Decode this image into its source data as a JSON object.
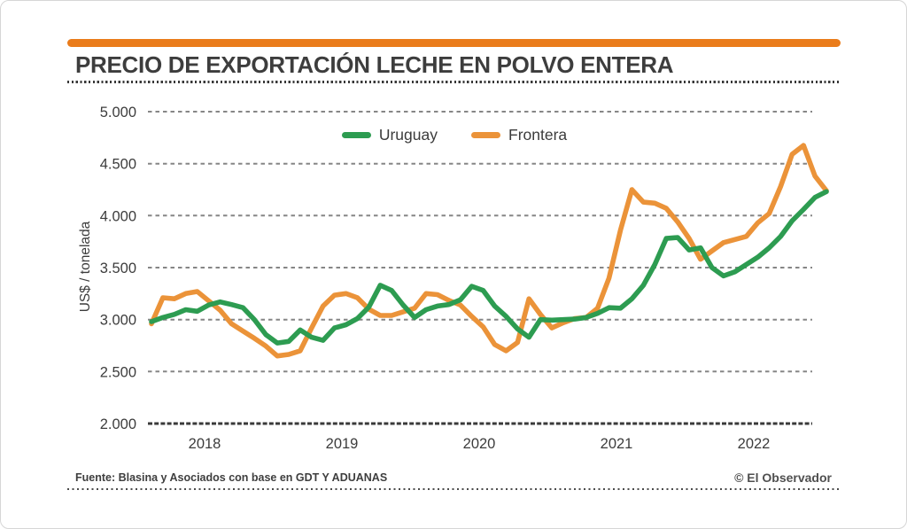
{
  "header": {
    "title": "PRECIO DE EXPORTACIÓN LECHE EN POLVO ENTERA",
    "accent_color": "#ea7c1b"
  },
  "footer": {
    "source": "Fuente: Blasina y Asociados con base en GDT Y ADUANAS",
    "credit": "© El Observador"
  },
  "chart_data": {
    "type": "line",
    "title": "PRECIO DE EXPORTACIÓN LECHE EN POLVO ENTERA",
    "ylabel": "US$ / tonelada",
    "ylim": [
      2000,
      5000
    ],
    "grid": "horizontal-dashed",
    "legend_position": "top-center",
    "y_ticks": [
      {
        "value": 5000,
        "label": "5.000"
      },
      {
        "value": 4500,
        "label": "4.500"
      },
      {
        "value": 4000,
        "label": "4.000"
      },
      {
        "value": 3500,
        "label": "3.500"
      },
      {
        "value": 3000,
        "label": "3.000"
      },
      {
        "value": 2500,
        "label": "2.500"
      },
      {
        "value": 2000,
        "label": "2.000"
      }
    ],
    "x_ticks": [
      {
        "label": "2018",
        "pos": 0.0787
      },
      {
        "label": "2019",
        "pos": 0.2822
      },
      {
        "label": "2020",
        "pos": 0.4856
      },
      {
        "label": "2021",
        "pos": 0.689
      },
      {
        "label": "2022",
        "pos": 0.8924
      }
    ],
    "series": [
      {
        "name": "Uruguay",
        "color": "#2d9c51",
        "values": [
          2980,
          3020,
          3050,
          3095,
          3080,
          3140,
          3170,
          3145,
          3115,
          3000,
          2855,
          2775,
          2790,
          2900,
          2830,
          2800,
          2920,
          2950,
          3010,
          3120,
          3330,
          3280,
          3140,
          3020,
          3095,
          3130,
          3145,
          3190,
          3320,
          3280,
          3130,
          3030,
          2910,
          2830,
          3000,
          2995,
          3000,
          3005,
          3020,
          3060,
          3115,
          3110,
          3200,
          3330,
          3530,
          3780,
          3790,
          3670,
          3690,
          3500,
          3420,
          3460,
          3530,
          3600,
          3690,
          3800,
          3950,
          4060,
          4175,
          4230
        ]
      },
      {
        "name": "Frontera",
        "color": "#eb9339",
        "values": [
          2960,
          3210,
          3200,
          3250,
          3270,
          3180,
          3090,
          2960,
          2890,
          2820,
          2745,
          2650,
          2665,
          2700,
          2920,
          3130,
          3235,
          3250,
          3210,
          3100,
          3040,
          3040,
          3075,
          3110,
          3250,
          3240,
          3185,
          3140,
          3030,
          2930,
          2760,
          2700,
          2780,
          3200,
          3050,
          2920,
          2970,
          3010,
          3020,
          3110,
          3400,
          3860,
          4250,
          4130,
          4120,
          4070,
          3940,
          3780,
          3580,
          3660,
          3740,
          3770,
          3800,
          3930,
          4020,
          4280,
          4590,
          4675,
          4380,
          4240
        ]
      }
    ]
  }
}
